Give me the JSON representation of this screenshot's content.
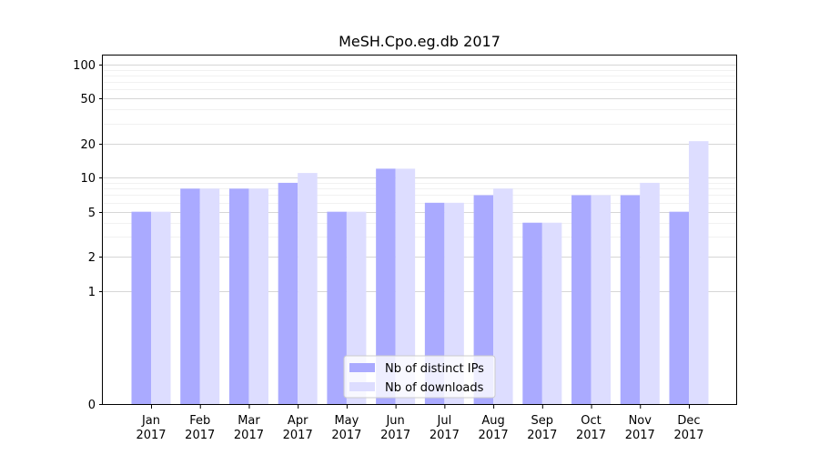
{
  "chart_data": {
    "type": "bar",
    "title": "MeSH.Cpo.eg.db 2017",
    "xlabel": "",
    "ylabel": "",
    "y_scale": "symlog",
    "ylim": [
      0,
      120
    ],
    "y_ticks": [
      0,
      1,
      2,
      5,
      10,
      20,
      50,
      100
    ],
    "y_tick_labels": [
      "0",
      "1",
      "2",
      "5",
      "10",
      "20",
      "50",
      "100"
    ],
    "categories": [
      "Jan\n2017",
      "Feb\n2017",
      "Mar\n2017",
      "Apr\n2017",
      "May\n2017",
      "Jun\n2017",
      "Jul\n2017",
      "Aug\n2017",
      "Sep\n2017",
      "Oct\n2017",
      "Nov\n2017",
      "Dec\n2017"
    ],
    "series": [
      {
        "name": "Nb of distinct IPs",
        "color": "#aaaaff",
        "values": [
          5,
          8,
          8,
          9,
          5,
          12,
          6,
          7,
          4,
          7,
          7,
          5
        ]
      },
      {
        "name": "Nb of downloads",
        "color": "#ddddff",
        "values": [
          5,
          8,
          8,
          11,
          5,
          12,
          6,
          8,
          4,
          7,
          9,
          21
        ]
      }
    ],
    "grid": true,
    "legend_position": "bottom-center"
  }
}
